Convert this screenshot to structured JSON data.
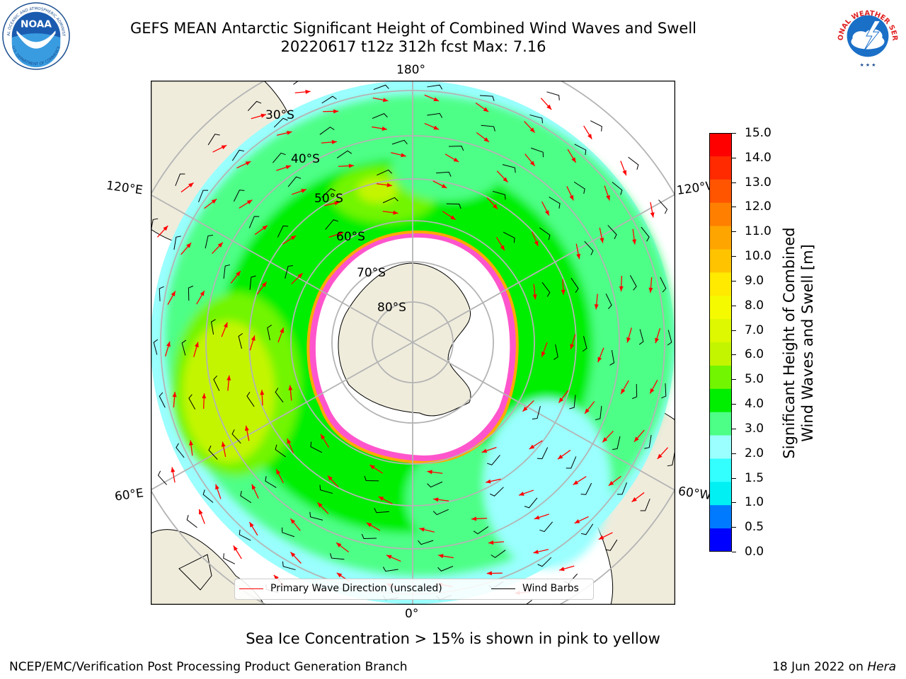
{
  "header": {
    "title_line1": "GEFS MEAN Antarctic Significant Height of Combined Wind Waves and Swell",
    "title_line2": "20220617 t12z 312h fcst   Max: 7.16",
    "left_logo": {
      "text": "NOAA",
      "ring_text_top": "NATIONAL OCEANIC AND ATMOSPHERIC ADMINISTRATION",
      "ring_text_bottom": "U.S. DEPARTMENT OF COMMERCE"
    },
    "right_logo": {
      "ring_text": "NATIONAL WEATHER SERVICE"
    }
  },
  "map": {
    "projection": "south-polar-stereographic",
    "longitude_labels": {
      "top": "180°",
      "upper_left": "120°E",
      "upper_right": "120°W",
      "lower_left": "60°E",
      "lower_right": "60°W",
      "bottom": "0°"
    },
    "latitude_labels": [
      "30°S",
      "40°S",
      "50°S",
      "60°S",
      "70°S",
      "80°S"
    ],
    "fields": [
      "Significant Height of Combined Wind Waves and Swell",
      "Primary Wave Direction",
      "Wind Barbs",
      "Sea Ice Concentration"
    ],
    "colors": {
      "land": "#efecdc",
      "ice": "#ffffff",
      "coast": "#000000",
      "grid": "#b4b4b4",
      "wave_arrow": "#ff0000",
      "wind_barb": "#000000"
    }
  },
  "legend": {
    "items": [
      {
        "label": "Primary Wave Direction (unscaled)",
        "color": "#ff0000"
      },
      {
        "label": "Wind Barbs",
        "color": "#000000"
      }
    ]
  },
  "colorbar": {
    "label_line1": "Significant Height of Combined",
    "label_line2": "Wind Waves and Swell [m]",
    "ticks": [
      "15.0",
      "14.0",
      "13.0",
      "12.0",
      "11.0",
      "10.0",
      "9.0",
      "8.0",
      "7.0",
      "6.0",
      "5.0",
      "4.0",
      "3.0",
      "2.0",
      "1.5",
      "1.0",
      "0.5",
      "0.0"
    ],
    "colors_top_to_bottom": [
      "#ff0000",
      "#ff2a00",
      "#ff5500",
      "#ff7f00",
      "#ffa500",
      "#ffc300",
      "#ffea00",
      "#f5fa00",
      "#ddf800",
      "#c4f500",
      "#72f500",
      "#00ef00",
      "#4dff86",
      "#9afffe",
      "#33ffff",
      "#00f0f4",
      "#007bff",
      "#0000ff"
    ]
  },
  "notes": {
    "sea_ice": "Sea Ice Concentration > 15% is shown in pink to yellow"
  },
  "footer": {
    "left": "NCEP/EMC/Verification Post Processing Product Generation Branch",
    "right_prefix": "18 Jun 2022 on ",
    "right_host": "Hera"
  }
}
